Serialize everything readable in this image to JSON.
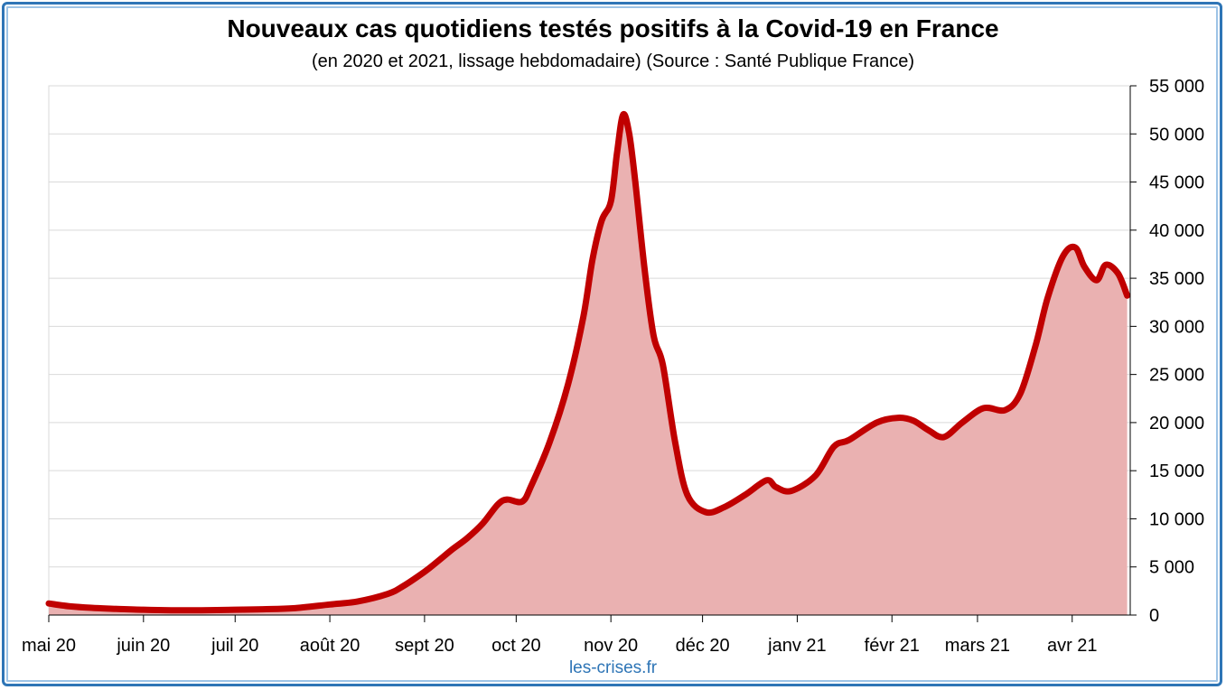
{
  "chart_data": {
    "type": "area",
    "title": "Nouveaux cas quotidiens testés positifs à la Covid-19 en France",
    "subtitle": "(en 2020 et 2021, lissage hebdomadaire) (Source : Santé Publique France)",
    "source": "les-crises.fr",
    "xlabel": "",
    "ylabel": "",
    "ylim": [
      0,
      55000
    ],
    "y_ticks": [
      {
        "value": 0,
        "label": "0"
      },
      {
        "value": 5000,
        "label": "5 000"
      },
      {
        "value": 10000,
        "label": "10 000"
      },
      {
        "value": 15000,
        "label": "15 000"
      },
      {
        "value": 20000,
        "label": "20 000"
      },
      {
        "value": 25000,
        "label": "25 000"
      },
      {
        "value": 30000,
        "label": "30 000"
      },
      {
        "value": 35000,
        "label": "35 000"
      },
      {
        "value": 40000,
        "label": "40 000"
      },
      {
        "value": 45000,
        "label": "45 000"
      },
      {
        "value": 50000,
        "label": "50 000"
      },
      {
        "value": 55000,
        "label": "55 000"
      }
    ],
    "x_range": [
      "2020-05-01",
      "2021-04-20"
    ],
    "x_ticks": [
      {
        "date": "2020-05-01",
        "label": "mai 20"
      },
      {
        "date": "2020-06-01",
        "label": "juin 20"
      },
      {
        "date": "2020-07-01",
        "label": "juil 20"
      },
      {
        "date": "2020-08-01",
        "label": "août 20"
      },
      {
        "date": "2020-09-01",
        "label": "sept 20"
      },
      {
        "date": "2020-10-01",
        "label": "oct 20"
      },
      {
        "date": "2020-11-01",
        "label": "nov 20"
      },
      {
        "date": "2020-12-01",
        "label": "déc 20"
      },
      {
        "date": "2021-01-01",
        "label": "janv 21"
      },
      {
        "date": "2021-02-01",
        "label": "févr 21"
      },
      {
        "date": "2021-03-01",
        "label": "mars 21"
      },
      {
        "date": "2021-04-01",
        "label": "avr 21"
      }
    ],
    "grid": true,
    "y_axis_position": "right",
    "colors": {
      "line": "#c00000",
      "fill": "#eab1b1",
      "grid": "#d9d9d9",
      "frame": "#2e75b6",
      "source": "#2e75b6"
    },
    "series": [
      {
        "points": [
          [
            "2020-05-01",
            1200
          ],
          [
            "2020-05-08",
            900
          ],
          [
            "2020-05-15",
            750
          ],
          [
            "2020-05-22",
            650
          ],
          [
            "2020-06-01",
            550
          ],
          [
            "2020-06-10",
            500
          ],
          [
            "2020-06-20",
            500
          ],
          [
            "2020-07-01",
            550
          ],
          [
            "2020-07-10",
            600
          ],
          [
            "2020-07-20",
            700
          ],
          [
            "2020-08-01",
            1100
          ],
          [
            "2020-08-10",
            1400
          ],
          [
            "2020-08-20",
            2200
          ],
          [
            "2020-08-25",
            3000
          ],
          [
            "2020-09-01",
            4500
          ],
          [
            "2020-09-05",
            5500
          ],
          [
            "2020-09-10",
            6800
          ],
          [
            "2020-09-15",
            8000
          ],
          [
            "2020-09-20",
            9500
          ],
          [
            "2020-09-25",
            11500
          ],
          [
            "2020-09-28",
            12000
          ],
          [
            "2020-10-03",
            11800
          ],
          [
            "2020-10-06",
            13500
          ],
          [
            "2020-10-12",
            18000
          ],
          [
            "2020-10-18",
            24000
          ],
          [
            "2020-10-23",
            31000
          ],
          [
            "2020-10-26",
            37000
          ],
          [
            "2020-10-29",
            41000
          ],
          [
            "2020-11-01",
            43000
          ],
          [
            "2020-11-03",
            48000
          ],
          [
            "2020-11-05",
            52000
          ],
          [
            "2020-11-07",
            50000
          ],
          [
            "2020-11-09",
            45000
          ],
          [
            "2020-11-12",
            36000
          ],
          [
            "2020-11-15",
            29000
          ],
          [
            "2020-11-18",
            26000
          ],
          [
            "2020-11-22",
            18000
          ],
          [
            "2020-11-26",
            12500
          ],
          [
            "2020-12-02",
            10700
          ],
          [
            "2020-12-08",
            11200
          ],
          [
            "2020-12-15",
            12500
          ],
          [
            "2020-12-22",
            14000
          ],
          [
            "2020-12-25",
            13300
          ],
          [
            "2020-12-30",
            12900
          ],
          [
            "2021-01-07",
            14500
          ],
          [
            "2021-01-13",
            17500
          ],
          [
            "2021-01-18",
            18200
          ],
          [
            "2021-01-27",
            20000
          ],
          [
            "2021-02-03",
            20500
          ],
          [
            "2021-02-08",
            20200
          ],
          [
            "2021-02-13",
            19200
          ],
          [
            "2021-02-18",
            18500
          ],
          [
            "2021-02-24",
            20000
          ],
          [
            "2021-03-03",
            21500
          ],
          [
            "2021-03-10",
            21300
          ],
          [
            "2021-03-15",
            23000
          ],
          [
            "2021-03-20",
            28000
          ],
          [
            "2021-03-24",
            33000
          ],
          [
            "2021-03-29",
            37300
          ],
          [
            "2021-04-02",
            38200
          ],
          [
            "2021-04-05",
            36200
          ],
          [
            "2021-04-09",
            34800
          ],
          [
            "2021-04-12",
            36400
          ],
          [
            "2021-04-16",
            35500
          ],
          [
            "2021-04-19",
            33200
          ]
        ]
      }
    ]
  }
}
